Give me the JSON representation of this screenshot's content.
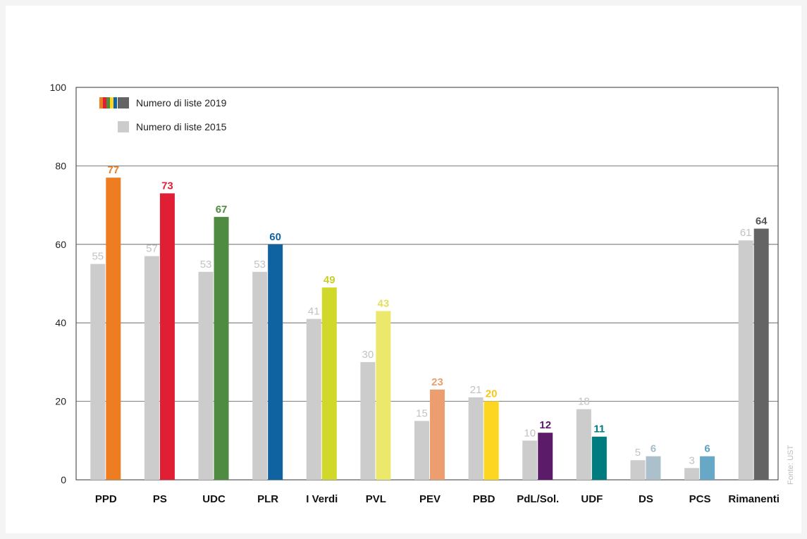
{
  "chart_data": {
    "type": "bar",
    "categories": [
      "PPD",
      "PS",
      "UDC",
      "PLR",
      "I Verdi",
      "PVL",
      "PEV",
      "PBD",
      "PdL/Sol.",
      "UDF",
      "DS",
      "PCS",
      "Rimanenti"
    ],
    "series": [
      {
        "name": "Numero di liste 2015",
        "values": [
          55,
          57,
          53,
          53,
          41,
          30,
          15,
          21,
          10,
          18,
          5,
          3,
          61
        ],
        "color": "#cccccc",
        "label_color": "#c2c2c2"
      },
      {
        "name": "Numero di liste 2019",
        "values": [
          77,
          73,
          67,
          60,
          49,
          43,
          23,
          20,
          12,
          11,
          6,
          6,
          64
        ],
        "colors": [
          "#ee7d22",
          "#e01e34",
          "#4f8b41",
          "#0f63a1",
          "#d0d82a",
          "#ebe86c",
          "#ec9e6f",
          "#fdd622",
          "#5b1b69",
          "#007c7e",
          "#abc0cb",
          "#68a8c7",
          "#646464"
        ],
        "label_colors": [
          "#ee7d22",
          "#e01e34",
          "#4f8b41",
          "#0f63a1",
          "#c8cf27",
          "#e3df5b",
          "#ec9e6f",
          "#f6c718",
          "#5b1b69",
          "#007c7e",
          "#a6bcc8",
          "#5ea1c2",
          "#555555"
        ]
      }
    ],
    "y_ticks": [
      0,
      20,
      40,
      60,
      80,
      100
    ],
    "ylim": [
      0,
      100
    ],
    "title": "",
    "xlabel": "",
    "ylabel": "",
    "grid": true,
    "legend_position": "top-left",
    "legend_swatch_colors_2019": [
      "#ee7d22",
      "#e01e34",
      "#4f8b41",
      "#fdd622",
      "#0f63a1",
      "#646464"
    ]
  },
  "legend": {
    "label_2019": "Numero di liste 2019",
    "label_2015": "Numero di liste 2015"
  },
  "source": "Fonte: UST"
}
